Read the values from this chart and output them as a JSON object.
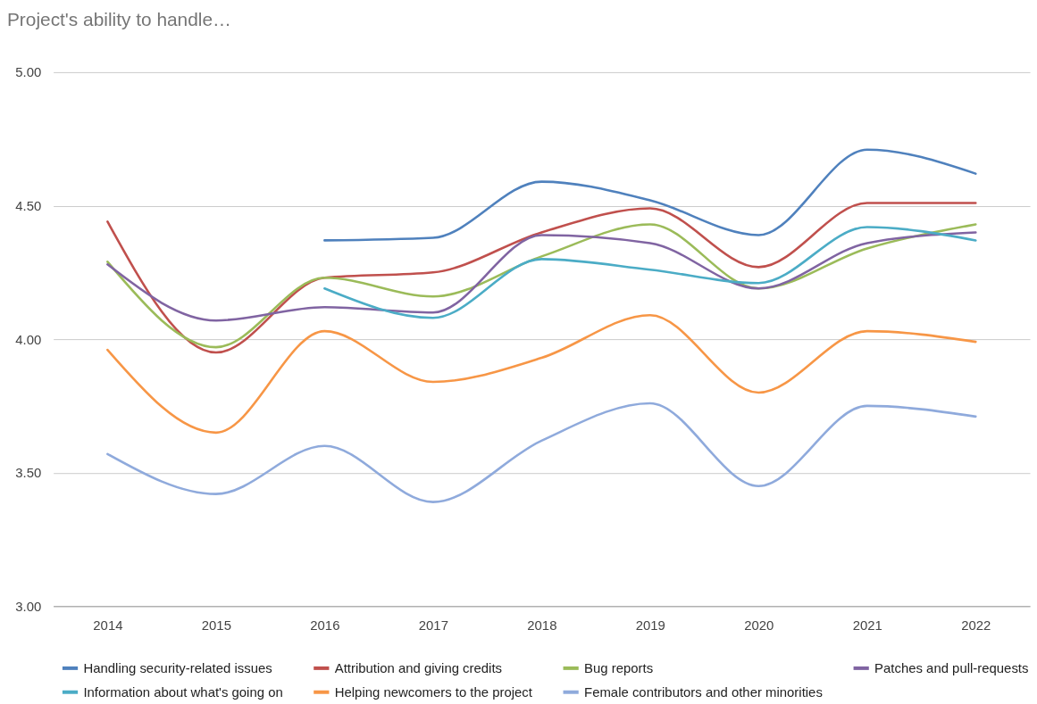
{
  "chart_data": {
    "type": "line",
    "title": "Project's ability to handle…",
    "categories": [
      "2014",
      "2015",
      "2016",
      "2017",
      "2018",
      "2019",
      "2020",
      "2021",
      "2022"
    ],
    "series": [
      {
        "name": "Handling security-related issues",
        "color": "#4f81bd",
        "values": [
          null,
          null,
          4.37,
          4.38,
          4.59,
          4.52,
          4.39,
          4.71,
          4.62
        ]
      },
      {
        "name": "Attribution and giving credits",
        "color": "#c0504d",
        "values": [
          4.44,
          3.95,
          4.23,
          4.25,
          4.4,
          4.49,
          4.27,
          4.51,
          4.51
        ]
      },
      {
        "name": "Bug reports",
        "color": "#9bbb59",
        "values": [
          4.29,
          3.97,
          4.23,
          4.16,
          4.31,
          4.43,
          4.19,
          4.34,
          4.43
        ]
      },
      {
        "name": "Patches and pull-requests",
        "color": "#8064a2",
        "values": [
          4.28,
          4.07,
          4.12,
          4.1,
          4.39,
          4.36,
          4.19,
          4.36,
          4.4
        ]
      },
      {
        "name": "Information about what's going on",
        "color": "#4bacc6",
        "values": [
          null,
          null,
          4.19,
          4.08,
          4.3,
          4.26,
          4.21,
          4.42,
          4.37
        ]
      },
      {
        "name": "Helping newcomers to the project",
        "color": "#f79646",
        "values": [
          3.96,
          3.65,
          4.03,
          3.84,
          3.93,
          4.09,
          3.8,
          4.03,
          3.99
        ]
      },
      {
        "name": "Female contributors and other minorities",
        "color": "#8faadc",
        "values": [
          3.57,
          3.42,
          3.6,
          3.39,
          3.62,
          3.76,
          3.45,
          3.75,
          3.71
        ]
      }
    ],
    "ylim": [
      3,
      5
    ],
    "yticks": [
      {
        "value": 3,
        "label": "3.00"
      },
      {
        "value": 3.5,
        "label": "3.50"
      },
      {
        "value": 4,
        "label": "4.00"
      },
      {
        "value": 4.5,
        "label": "4.50"
      },
      {
        "value": 5,
        "label": "5.00"
      }
    ],
    "grid": "y",
    "legend": "bottom"
  }
}
